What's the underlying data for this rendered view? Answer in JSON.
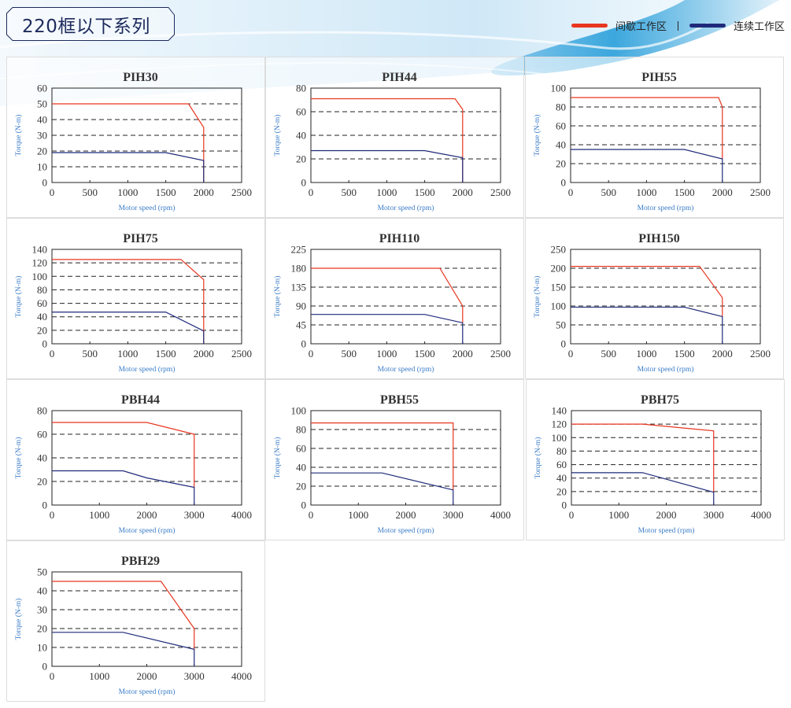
{
  "header": {
    "title": "220框以下系列",
    "legend": [
      {
        "label": "间歇工作区",
        "color": "#e8361f"
      },
      {
        "label": "连续工作区",
        "color": "#1f2a7a"
      }
    ]
  },
  "colors": {
    "intermittent": "#e8361f",
    "continuous": "#1f2a7a",
    "axis_label": "#3a7cc8"
  },
  "chart_data": [
    {
      "type": "line",
      "title": "PIH30",
      "xlabel": "Motor speed (rpm)",
      "ylabel": "Torque (N-m)",
      "xlim": [
        0,
        2500
      ],
      "ylim": [
        0,
        60
      ],
      "xticks": [
        0,
        500,
        1000,
        1500,
        2000,
        2500
      ],
      "yticks": [
        0,
        10,
        20,
        30,
        40,
        50,
        60
      ],
      "grid": "dashed-horizontal",
      "series": [
        {
          "name": "间歇工作区",
          "x": [
            0,
            1800,
            2000,
            2000
          ],
          "y": [
            50,
            50,
            35,
            0
          ]
        },
        {
          "name": "连续工作区",
          "x": [
            0,
            1500,
            2000,
            2000
          ],
          "y": [
            19,
            19,
            14,
            0
          ]
        }
      ]
    },
    {
      "type": "line",
      "title": "PIH44",
      "xlabel": "Motor speed (rpm)",
      "ylabel": "Torque (N-m)",
      "xlim": [
        0,
        2500
      ],
      "ylim": [
        0,
        80
      ],
      "xticks": [
        0,
        500,
        1000,
        1500,
        2000,
        2500
      ],
      "yticks": [
        0,
        20,
        40,
        60,
        80
      ],
      "grid": "dashed-horizontal",
      "series": [
        {
          "name": "间歇工作区",
          "x": [
            0,
            1900,
            2000,
            2000
          ],
          "y": [
            71,
            71,
            62,
            0
          ]
        },
        {
          "name": "连续工作区",
          "x": [
            0,
            1500,
            2000,
            2000
          ],
          "y": [
            27,
            27,
            21,
            0
          ]
        }
      ]
    },
    {
      "type": "line",
      "title": "PIH55",
      "xlabel": "Motor speed (rpm)",
      "ylabel": "Torque (N-m)",
      "xlim": [
        0,
        2500
      ],
      "ylim": [
        0,
        100
      ],
      "xticks": [
        0,
        500,
        1000,
        1500,
        2000,
        2500
      ],
      "yticks": [
        0,
        20,
        40,
        60,
        80,
        100
      ],
      "grid": "dashed-horizontal",
      "series": [
        {
          "name": "间歇工作区",
          "x": [
            0,
            1950,
            2000,
            2000
          ],
          "y": [
            90,
            90,
            80,
            25
          ]
        },
        {
          "name": "连续工作区",
          "x": [
            0,
            1500,
            2000,
            2000
          ],
          "y": [
            35,
            35,
            25,
            0
          ]
        }
      ]
    },
    {
      "type": "line",
      "title": "PIH75",
      "xlabel": "Motor speed (rpm)",
      "ylabel": "Torque (N-m)",
      "xlim": [
        0,
        2500
      ],
      "ylim": [
        0,
        140
      ],
      "xticks": [
        0,
        500,
        1000,
        1500,
        2000,
        2500
      ],
      "yticks": [
        0,
        20,
        40,
        60,
        80,
        100,
        120,
        140
      ],
      "grid": "dashed-horizontal",
      "series": [
        {
          "name": "间歇工作区",
          "x": [
            0,
            1700,
            2000,
            2000
          ],
          "y": [
            125,
            125,
            95,
            0
          ]
        },
        {
          "name": "连续工作区",
          "x": [
            0,
            1500,
            2000,
            2000
          ],
          "y": [
            47,
            47,
            19,
            0
          ]
        }
      ]
    },
    {
      "type": "line",
      "title": "PIH110",
      "xlabel": "Motor speed (rpm)",
      "ylabel": "Torque (N-m)",
      "xlim": [
        0,
        2500
      ],
      "ylim": [
        0,
        225
      ],
      "xticks": [
        0,
        500,
        1000,
        1500,
        2000,
        2500
      ],
      "yticks": [
        0,
        45,
        90,
        135,
        180,
        225
      ],
      "grid": "dashed-horizontal",
      "series": [
        {
          "name": "间歇工作区",
          "x": [
            0,
            1700,
            2000,
            2000
          ],
          "y": [
            180,
            180,
            90,
            50
          ]
        },
        {
          "name": "连续工作区",
          "x": [
            0,
            1500,
            2000,
            2000
          ],
          "y": [
            70,
            70,
            50,
            0
          ]
        }
      ]
    },
    {
      "type": "line",
      "title": "PIH150",
      "xlabel": "Motor speed (rpm)",
      "ylabel": "Torque (N-m)",
      "xlim": [
        0,
        2500
      ],
      "ylim": [
        0,
        250
      ],
      "xticks": [
        0,
        500,
        1000,
        1500,
        2000,
        2500
      ],
      "yticks": [
        0,
        50,
        100,
        150,
        200,
        250
      ],
      "grid": "dashed-horizontal",
      "series": [
        {
          "name": "间歇工作区",
          "x": [
            0,
            1700,
            2000,
            2000
          ],
          "y": [
            205,
            205,
            122,
            72
          ]
        },
        {
          "name": "连续工作区",
          "x": [
            0,
            1500,
            2000,
            2000
          ],
          "y": [
            97,
            97,
            72,
            0
          ]
        }
      ]
    },
    {
      "type": "line",
      "title": "PBH44",
      "xlabel": "Motor speed (rpm)",
      "ylabel": "Torque (N-m)",
      "xlim": [
        0,
        4000
      ],
      "ylim": [
        0,
        80
      ],
      "xticks": [
        0,
        1000,
        2000,
        3000,
        4000
      ],
      "yticks": [
        0,
        20,
        40,
        60,
        80
      ],
      "grid": "dashed-horizontal",
      "series": [
        {
          "name": "间歇工作区",
          "x": [
            0,
            2000,
            3000,
            3000
          ],
          "y": [
            70,
            70,
            60,
            15
          ]
        },
        {
          "name": "连续工作区",
          "x": [
            0,
            1500,
            2000,
            3000,
            3000
          ],
          "y": [
            29,
            29,
            23,
            15,
            0
          ]
        }
      ]
    },
    {
      "type": "line",
      "title": "PBH55",
      "xlabel": "Motor speed (rpm)",
      "ylabel": "Torque (N-m)",
      "xlim": [
        0,
        4000
      ],
      "ylim": [
        0,
        100
      ],
      "xticks": [
        0,
        1000,
        2000,
        3000,
        4000
      ],
      "yticks": [
        0,
        20,
        40,
        60,
        80,
        100
      ],
      "grid": "dashed-horizontal",
      "series": [
        {
          "name": "间歇工作区",
          "x": [
            0,
            3000,
            3000
          ],
          "y": [
            87,
            87,
            16
          ]
        },
        {
          "name": "连续工作区",
          "x": [
            0,
            1500,
            3000,
            3000
          ],
          "y": [
            34,
            34,
            16,
            0
          ]
        }
      ]
    },
    {
      "type": "line",
      "title": "PBH75",
      "xlabel": "Motor speed (rpm)",
      "ylabel": "Torque (N-m)",
      "xlim": [
        0,
        4000
      ],
      "ylim": [
        0,
        140
      ],
      "xticks": [
        0,
        1000,
        2000,
        3000,
        4000
      ],
      "yticks": [
        0,
        20,
        40,
        60,
        80,
        100,
        120,
        140
      ],
      "grid": "dashed-horizontal",
      "series": [
        {
          "name": "间歇工作区",
          "x": [
            0,
            1500,
            3000,
            3000
          ],
          "y": [
            120,
            120,
            110,
            19
          ]
        },
        {
          "name": "连续工作区",
          "x": [
            0,
            1500,
            3000,
            3000
          ],
          "y": [
            48,
            48,
            19,
            0
          ]
        }
      ]
    },
    {
      "type": "line",
      "title": "PBH29",
      "xlabel": "Motor speed (rpm)",
      "ylabel": "Torque (N-m)",
      "xlim": [
        0,
        4000
      ],
      "ylim": [
        0,
        50
      ],
      "xticks": [
        0,
        1000,
        2000,
        3000,
        4000
      ],
      "yticks": [
        0,
        10,
        20,
        30,
        40,
        50
      ],
      "grid": "dashed-horizontal",
      "series": [
        {
          "name": "间歇工作区",
          "x": [
            0,
            2300,
            3000,
            3000
          ],
          "y": [
            45,
            45,
            20,
            9
          ]
        },
        {
          "name": "连续工作区",
          "x": [
            0,
            1500,
            3000,
            3000
          ],
          "y": [
            18,
            18,
            9,
            0
          ]
        }
      ]
    }
  ]
}
